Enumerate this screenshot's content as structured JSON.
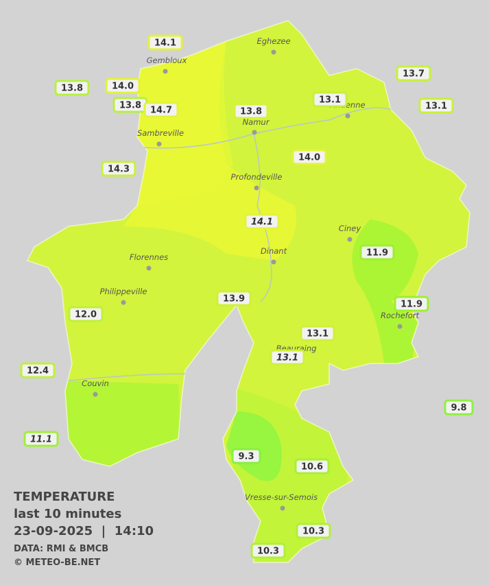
{
  "legend": {
    "title": "TEMPERATURE",
    "subtitle": "last 10 minutes",
    "datetime": "23-09-2025  |  14:10",
    "source": "DATA: RMI & BMCB",
    "copyright": "© METEO-BE.NET"
  },
  "cities": [
    "Eghezee",
    "Gembloux",
    "Andenne",
    "Namur",
    "Sambreville",
    "Profondeville",
    "Ciney",
    "Dinant",
    "Florennes",
    "Philippeville",
    "Rochefort",
    "Beauraing",
    "Couvin",
    "Vresse-sur-Semois"
  ],
  "stations": [
    {
      "label": "14.1",
      "color": "#e4f23a"
    },
    {
      "label": "14.0",
      "color": "#e4f23a"
    },
    {
      "label": "13.8",
      "color": "#b8f040"
    },
    {
      "label": "13.8",
      "color": "#b8f040"
    },
    {
      "label": "14.7",
      "color": "#e4f23a"
    },
    {
      "label": "13.8",
      "color": "#d8f03a"
    },
    {
      "label": "13.1",
      "color": "#c8f03a"
    },
    {
      "label": "13.7",
      "color": "#c8f03a"
    },
    {
      "label": "13.1",
      "color": "#c8f03a"
    },
    {
      "label": "14.3",
      "color": "#c8f03a"
    },
    {
      "label": "14.0",
      "color": "#e4f23a"
    },
    {
      "label": "14.1",
      "color": "#e4f23a",
      "italic": true
    },
    {
      "label": "11.9",
      "color": "#9cf030"
    },
    {
      "label": "13.9",
      "color": "#d0f03a"
    },
    {
      "label": "11.9",
      "color": "#9cf030"
    },
    {
      "label": "12.0",
      "color": "#c0f03a"
    },
    {
      "label": "13.1",
      "color": "#d0f03a"
    },
    {
      "label": "13.1",
      "color": "#d0f03a",
      "italic": true
    },
    {
      "label": "12.4",
      "color": "#c0f03a"
    },
    {
      "label": "9.8",
      "color": "#90f040"
    },
    {
      "label": "11.1",
      "color": "#a0f038",
      "italic": true
    },
    {
      "label": "9.3",
      "color": "#88f040"
    },
    {
      "label": "10.6",
      "color": "#a8f038"
    },
    {
      "label": "10.3",
      "color": "#b0f038"
    },
    {
      "label": "10.3",
      "color": "#b0f038"
    }
  ]
}
